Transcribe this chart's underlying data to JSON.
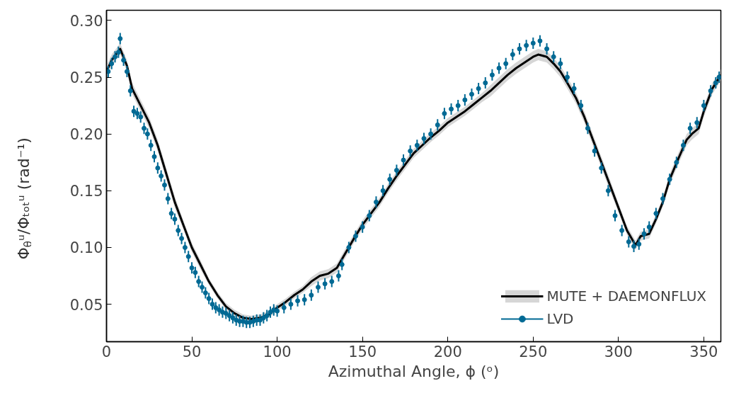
{
  "chart_data": {
    "type": "line",
    "xlabel": "Azimuthal Angle, ϕ (ᵒ)",
    "ylabel": "Φ$_{θ}$ᵘ/Φₜₒₜᵘ (rad⁻¹)",
    "xlim": [
      0,
      360
    ],
    "ylim": [
      0.017,
      0.309
    ],
    "xticks": [
      0,
      50,
      100,
      150,
      200,
      250,
      300,
      350
    ],
    "yticks": [
      0.05,
      {
        "value": 0.1,
        "label": "0.10"
      },
      0.15,
      {
        "value": 0.2,
        "label": "0.20"
      },
      0.25,
      {
        "value": 0.3,
        "label": "0.30"
      }
    ],
    "grid": false,
    "legend": "bottom right",
    "series": [
      {
        "name": "MUTE + DAEMONFLUX",
        "color": "#000000",
        "line_style": "solid",
        "x": [
          0,
          3,
          8,
          12,
          15,
          20,
          25,
          30,
          35,
          40,
          45,
          50,
          55,
          60,
          65,
          70,
          75,
          80,
          85,
          90,
          95,
          100,
          105,
          110,
          115,
          120,
          125,
          130,
          135,
          140,
          145,
          150,
          155,
          160,
          165,
          170,
          175,
          180,
          185,
          190,
          195,
          200,
          205,
          210,
          215,
          220,
          225,
          230,
          235,
          240,
          245,
          250,
          253,
          258,
          262,
          266,
          270,
          275,
          280,
          285,
          290,
          295,
          300,
          305,
          310,
          313,
          318,
          322,
          326,
          330,
          335,
          340,
          343,
          347,
          350,
          355,
          360
        ],
        "values": [
          0.255,
          0.265,
          0.275,
          0.26,
          0.24,
          0.225,
          0.21,
          0.19,
          0.165,
          0.14,
          0.12,
          0.1,
          0.085,
          0.07,
          0.058,
          0.048,
          0.042,
          0.038,
          0.037,
          0.038,
          0.041,
          0.047,
          0.052,
          0.058,
          0.063,
          0.07,
          0.075,
          0.077,
          0.082,
          0.095,
          0.108,
          0.12,
          0.13,
          0.14,
          0.152,
          0.163,
          0.173,
          0.183,
          0.19,
          0.197,
          0.203,
          0.21,
          0.215,
          0.22,
          0.226,
          0.232,
          0.238,
          0.245,
          0.252,
          0.258,
          0.263,
          0.268,
          0.27,
          0.268,
          0.262,
          0.255,
          0.245,
          0.232,
          0.215,
          0.195,
          0.175,
          0.155,
          0.135,
          0.115,
          0.102,
          0.11,
          0.112,
          0.125,
          0.14,
          0.16,
          0.178,
          0.195,
          0.2,
          0.205,
          0.22,
          0.24,
          0.252
        ],
        "lower": [
          0.25,
          0.26,
          0.27,
          0.255,
          0.235,
          0.22,
          0.205,
          0.185,
          0.16,
          0.135,
          0.116,
          0.096,
          0.081,
          0.067,
          0.055,
          0.045,
          0.039,
          0.035,
          0.034,
          0.035,
          0.038,
          0.044,
          0.049,
          0.055,
          0.06,
          0.066,
          0.071,
          0.073,
          0.078,
          0.091,
          0.104,
          0.116,
          0.126,
          0.136,
          0.148,
          0.159,
          0.169,
          0.179,
          0.186,
          0.193,
          0.199,
          0.206,
          0.211,
          0.216,
          0.222,
          0.228,
          0.233,
          0.24,
          0.247,
          0.253,
          0.258,
          0.263,
          0.265,
          0.263,
          0.257,
          0.25,
          0.24,
          0.227,
          0.21,
          0.19,
          0.17,
          0.15,
          0.131,
          0.111,
          0.098,
          0.106,
          0.108,
          0.121,
          0.136,
          0.155,
          0.173,
          0.19,
          0.195,
          0.2,
          0.215,
          0.235,
          0.247
        ],
        "upper": [
          0.26,
          0.27,
          0.28,
          0.265,
          0.245,
          0.23,
          0.215,
          0.195,
          0.17,
          0.145,
          0.124,
          0.104,
          0.089,
          0.073,
          0.061,
          0.051,
          0.045,
          0.041,
          0.04,
          0.041,
          0.044,
          0.05,
          0.055,
          0.061,
          0.066,
          0.074,
          0.079,
          0.081,
          0.086,
          0.099,
          0.112,
          0.124,
          0.134,
          0.144,
          0.156,
          0.167,
          0.177,
          0.187,
          0.194,
          0.201,
          0.207,
          0.214,
          0.219,
          0.224,
          0.23,
          0.236,
          0.243,
          0.25,
          0.257,
          0.263,
          0.268,
          0.273,
          0.275,
          0.273,
          0.267,
          0.26,
          0.25,
          0.237,
          0.22,
          0.2,
          0.18,
          0.16,
          0.139,
          0.119,
          0.106,
          0.114,
          0.116,
          0.129,
          0.144,
          0.165,
          0.183,
          0.2,
          0.205,
          0.21,
          0.225,
          0.245,
          0.257
        ]
      },
      {
        "name": "LVD",
        "type": "scatter",
        "color": "#006994",
        "marker": "circle",
        "x": [
          1,
          3,
          5,
          7,
          8,
          10,
          12,
          14,
          16,
          18,
          20,
          22,
          24,
          26,
          28,
          30,
          32,
          34,
          36,
          38,
          40,
          42,
          44,
          46,
          48,
          50,
          52,
          54,
          56,
          58,
          60,
          62,
          64,
          66,
          68,
          70,
          72,
          74,
          76,
          78,
          80,
          82,
          84,
          86,
          88,
          90,
          92,
          94,
          96,
          98,
          100,
          104,
          108,
          112,
          116,
          120,
          124,
          128,
          132,
          136,
          138,
          142,
          146,
          150,
          154,
          158,
          162,
          166,
          170,
          174,
          178,
          182,
          186,
          190,
          194,
          198,
          202,
          206,
          210,
          214,
          218,
          222,
          226,
          230,
          234,
          238,
          242,
          246,
          250,
          254,
          258,
          262,
          266,
          270,
          274,
          278,
          282,
          286,
          290,
          294,
          298,
          302,
          306,
          309,
          312,
          315,
          318,
          322,
          326,
          330,
          334,
          338,
          342,
          346,
          350,
          354,
          357,
          359
        ],
        "values": [
          0.255,
          0.262,
          0.268,
          0.272,
          0.284,
          0.265,
          0.255,
          0.238,
          0.22,
          0.218,
          0.215,
          0.205,
          0.2,
          0.19,
          0.18,
          0.17,
          0.163,
          0.155,
          0.143,
          0.13,
          0.125,
          0.115,
          0.108,
          0.1,
          0.092,
          0.082,
          0.078,
          0.07,
          0.065,
          0.06,
          0.055,
          0.05,
          0.047,
          0.045,
          0.043,
          0.042,
          0.04,
          0.038,
          0.036,
          0.035,
          0.035,
          0.034,
          0.034,
          0.035,
          0.036,
          0.036,
          0.038,
          0.04,
          0.043,
          0.045,
          0.044,
          0.047,
          0.05,
          0.053,
          0.054,
          0.058,
          0.065,
          0.068,
          0.07,
          0.075,
          0.085,
          0.1,
          0.11,
          0.118,
          0.128,
          0.14,
          0.15,
          0.16,
          0.168,
          0.177,
          0.185,
          0.19,
          0.196,
          0.2,
          0.208,
          0.218,
          0.222,
          0.225,
          0.23,
          0.235,
          0.24,
          0.245,
          0.252,
          0.258,
          0.262,
          0.27,
          0.275,
          0.278,
          0.28,
          0.282,
          0.275,
          0.268,
          0.262,
          0.25,
          0.24,
          0.225,
          0.205,
          0.185,
          0.17,
          0.15,
          0.128,
          0.115,
          0.105,
          0.101,
          0.103,
          0.112,
          0.118,
          0.13,
          0.143,
          0.16,
          0.175,
          0.19,
          0.205,
          0.21,
          0.225,
          0.238,
          0.245,
          0.25
        ],
        "errors": [
          0.005,
          0.005,
          0.005,
          0.005,
          0.005,
          0.005,
          0.005,
          0.005,
          0.005,
          0.005,
          0.005,
          0.005,
          0.005,
          0.005,
          0.005,
          0.005,
          0.005,
          0.005,
          0.005,
          0.005,
          0.005,
          0.005,
          0.005,
          0.005,
          0.005,
          0.005,
          0.005,
          0.005,
          0.005,
          0.005,
          0.005,
          0.005,
          0.005,
          0.005,
          0.005,
          0.005,
          0.005,
          0.005,
          0.005,
          0.005,
          0.005,
          0.005,
          0.005,
          0.005,
          0.005,
          0.005,
          0.005,
          0.005,
          0.005,
          0.005,
          0.005,
          0.005,
          0.005,
          0.005,
          0.005,
          0.005,
          0.005,
          0.005,
          0.005,
          0.005,
          0.005,
          0.005,
          0.005,
          0.005,
          0.005,
          0.005,
          0.005,
          0.005,
          0.005,
          0.005,
          0.005,
          0.005,
          0.005,
          0.005,
          0.005,
          0.005,
          0.005,
          0.005,
          0.005,
          0.005,
          0.005,
          0.005,
          0.005,
          0.005,
          0.005,
          0.005,
          0.005,
          0.005,
          0.005,
          0.005,
          0.005,
          0.005,
          0.005,
          0.005,
          0.005,
          0.005,
          0.005,
          0.005,
          0.005,
          0.005,
          0.005,
          0.005,
          0.005,
          0.005,
          0.005,
          0.005,
          0.005,
          0.005,
          0.005,
          0.005,
          0.005,
          0.005,
          0.005,
          0.005,
          0.005,
          0.005,
          0.005,
          0.005
        ]
      }
    ]
  }
}
